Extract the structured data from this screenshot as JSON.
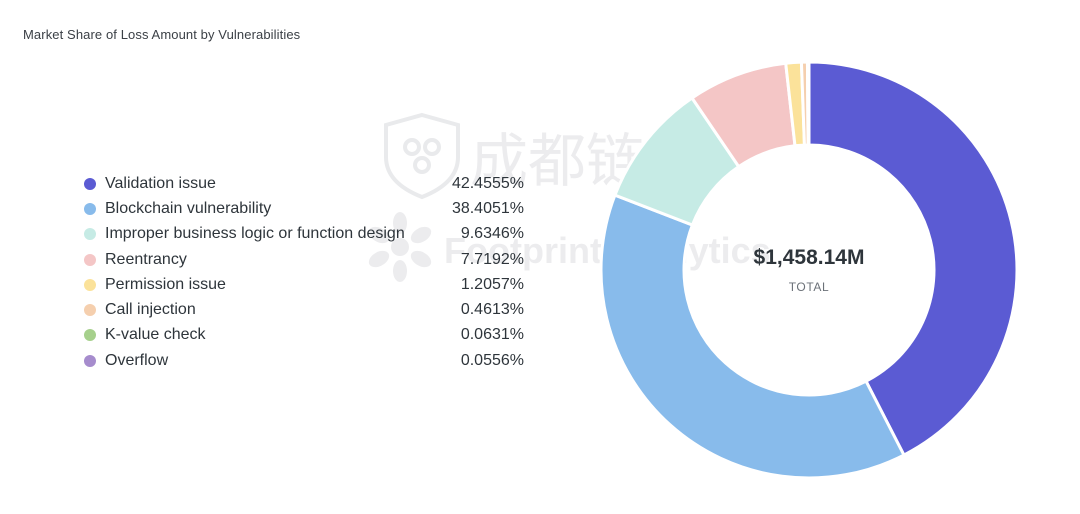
{
  "title": "Market Share of Loss Amount by Vulnerabilities",
  "watermark": {
    "cn_text": "成都链安",
    "en_text": "Footprint Analytics"
  },
  "center": {
    "value": "$1,458.14M",
    "label": "TOTAL"
  },
  "chart_data": {
    "type": "pie",
    "title": "Market Share of Loss Amount by Vulnerabilities",
    "total_label": "$1,458.14M",
    "legend_position": "left",
    "series": [
      {
        "name": "Validation issue",
        "value": 42.4555,
        "display": "42.4555%",
        "color": "#5b5bd3"
      },
      {
        "name": "Blockchain vulnerability",
        "value": 38.4051,
        "display": "38.4051%",
        "color": "#88bbeb"
      },
      {
        "name": "Improper business logic or function design",
        "value": 9.6346,
        "display": "9.6346%",
        "color": "#c6ebe5"
      },
      {
        "name": "Reentrancy",
        "value": 7.7192,
        "display": "7.7192%",
        "color": "#f4c6c6"
      },
      {
        "name": "Permission issue",
        "value": 1.2057,
        "display": "1.2057%",
        "color": "#fbe29a"
      },
      {
        "name": "Call injection",
        "value": 0.4613,
        "display": "0.4613%",
        "color": "#f5cfae"
      },
      {
        "name": "K-value check",
        "value": 0.0631,
        "display": "0.0631%",
        "color": "#a6d08c"
      },
      {
        "name": "Overflow",
        "value": 0.0556,
        "display": "0.0556%",
        "color": "#a68ccd"
      }
    ]
  }
}
